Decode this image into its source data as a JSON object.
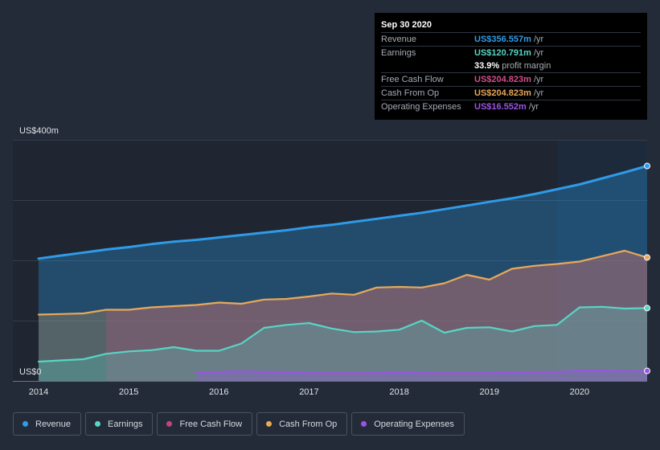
{
  "tooltip": {
    "date": "Sep 30 2020",
    "rows": [
      {
        "label": "Revenue",
        "value": "US$356.557m",
        "unit": "/yr",
        "color": "#2f9be8"
      },
      {
        "label": "Earnings",
        "value": "US$120.791m",
        "unit": "/yr",
        "color": "#58d5c4"
      },
      {
        "label": "",
        "value": "33.9%",
        "unit": "profit margin",
        "color": "#ffffff"
      },
      {
        "label": "Free Cash Flow",
        "value": "US$204.823m",
        "unit": "/yr",
        "color": "#d64d8a"
      },
      {
        "label": "Cash From Op",
        "value": "US$204.823m",
        "unit": "/yr",
        "color": "#e9a85a"
      },
      {
        "label": "Operating Expenses",
        "value": "US$16.552m",
        "unit": "/yr",
        "color": "#9b53e6"
      }
    ]
  },
  "legend": [
    {
      "label": "Revenue",
      "color": "#2f9be8"
    },
    {
      "label": "Earnings",
      "color": "#58d5c4"
    },
    {
      "label": "Free Cash Flow",
      "color": "#c4437f"
    },
    {
      "label": "Cash From Op",
      "color": "#e9a85a"
    },
    {
      "label": "Operating Expenses",
      "color": "#9b53e6"
    }
  ],
  "chart_data": {
    "type": "area",
    "ylabel_top": "US$400m",
    "ylabel_bottom": "US$0",
    "ylim": [
      0,
      400
    ],
    "xlim": [
      2014.0,
      2020.75
    ],
    "x_ticks": [
      "2014",
      "2015",
      "2016",
      "2017",
      "2018",
      "2019",
      "2020"
    ],
    "highlight_start": 2019.75,
    "series": [
      {
        "name": "Revenue",
        "color": "#2f9be8",
        "x": [
          2014.0,
          2014.25,
          2014.5,
          2014.75,
          2015.0,
          2015.25,
          2015.5,
          2015.75,
          2016.0,
          2016.25,
          2016.5,
          2016.75,
          2017.0,
          2017.25,
          2017.5,
          2017.75,
          2018.0,
          2018.25,
          2018.5,
          2018.75,
          2019.0,
          2019.25,
          2019.5,
          2019.75,
          2020.0,
          2020.25,
          2020.5,
          2020.75
        ],
        "values": [
          203,
          208,
          213,
          218,
          222,
          227,
          231,
          234,
          238,
          242,
          246,
          250,
          255,
          259,
          264,
          269,
          274,
          279,
          285,
          291,
          297,
          303,
          310,
          318,
          326,
          336,
          346,
          356.6
        ]
      },
      {
        "name": "Cash From Op",
        "color": "#e9a85a",
        "x": [
          2014.0,
          2014.25,
          2014.5,
          2014.75,
          2015.0,
          2015.25,
          2015.5,
          2015.75,
          2016.0,
          2016.25,
          2016.5,
          2016.75,
          2017.0,
          2017.25,
          2017.5,
          2017.75,
          2018.0,
          2018.25,
          2018.5,
          2018.75,
          2019.0,
          2019.25,
          2019.5,
          2019.75,
          2020.0,
          2020.25,
          2020.5,
          2020.75
        ],
        "values": [
          110,
          111,
          112,
          118,
          118,
          122,
          124,
          126,
          130,
          128,
          135,
          136,
          140,
          145,
          143,
          155,
          156,
          155,
          162,
          176,
          168,
          186,
          191,
          194,
          198,
          207,
          216,
          204.8
        ]
      },
      {
        "name": "Free Cash Flow",
        "color": "#d64d8a",
        "x": [
          2014.75,
          2015.0,
          2015.25,
          2015.5,
          2015.75,
          2016.0,
          2016.25,
          2016.5,
          2016.75,
          2017.0,
          2017.25,
          2017.5,
          2017.75,
          2018.0,
          2018.25,
          2018.5,
          2018.75,
          2019.0,
          2019.25,
          2019.5,
          2019.75,
          2020.0,
          2020.25,
          2020.5,
          2020.75
        ],
        "values": [
          118,
          118,
          122,
          124,
          126,
          130,
          128,
          135,
          136,
          140,
          145,
          143,
          155,
          156,
          155,
          162,
          176,
          168,
          186,
          191,
          194,
          198,
          207,
          216,
          204.8
        ]
      },
      {
        "name": "Earnings",
        "color": "#58d5c4",
        "x": [
          2014.0,
          2014.25,
          2014.5,
          2014.75,
          2015.0,
          2015.25,
          2015.5,
          2015.75,
          2016.0,
          2016.25,
          2016.5,
          2016.75,
          2017.0,
          2017.25,
          2017.5,
          2017.75,
          2018.0,
          2018.25,
          2018.5,
          2018.75,
          2019.0,
          2019.25,
          2019.5,
          2019.75,
          2020.0,
          2020.25,
          2020.5,
          2020.75
        ],
        "values": [
          32,
          34,
          36,
          45,
          49,
          51,
          56,
          50,
          50,
          62,
          88,
          93,
          96,
          87,
          81,
          82,
          85,
          100,
          80,
          88,
          89,
          82,
          91,
          93,
          122,
          123,
          120,
          120.8
        ]
      },
      {
        "name": "Operating Expenses",
        "color": "#9b53e6",
        "x": [
          2015.75,
          2016.0,
          2016.25,
          2016.5,
          2016.75,
          2017.0,
          2017.25,
          2017.5,
          2017.75,
          2018.0,
          2018.25,
          2018.5,
          2018.75,
          2019.0,
          2019.25,
          2019.5,
          2019.75,
          2020.0,
          2020.25,
          2020.5,
          2020.75
        ],
        "values": [
          14,
          15,
          16,
          15,
          15,
          13,
          13,
          13,
          13,
          14,
          13,
          13,
          13,
          13,
          14,
          15,
          15,
          17,
          17,
          16,
          16.6
        ]
      }
    ]
  }
}
